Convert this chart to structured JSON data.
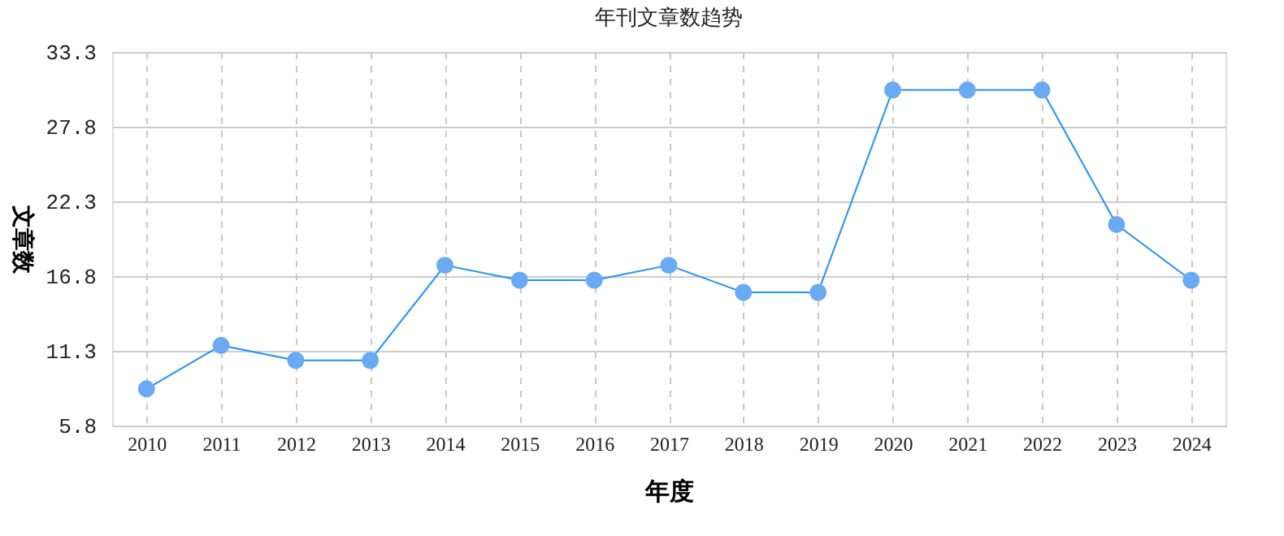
{
  "chart_data": {
    "type": "line",
    "title": "年刊文章数趋势",
    "xlabel": "年度",
    "ylabel": "文章数",
    "categories": [
      "2010",
      "2011",
      "2012",
      "2013",
      "2014",
      "2015",
      "2016",
      "2017",
      "2018",
      "2019",
      "2020",
      "2021",
      "2022",
      "2023",
      "2024"
    ],
    "series": [
      {
        "color": "#1e90ff",
        "values": [
          8.5,
          11.7,
          10.6,
          10.6,
          17.6,
          16.5,
          16.5,
          17.6,
          15.6,
          15.6,
          30.5,
          30.5,
          30.5,
          20.6,
          16.5
        ]
      }
    ],
    "ylim": [
      5.8,
      33.3
    ],
    "yticks": [
      5.8,
      11.3,
      16.8,
      22.3,
      27.8,
      33.3
    ],
    "grid": true,
    "marker": "circle",
    "line_style": "solid"
  }
}
